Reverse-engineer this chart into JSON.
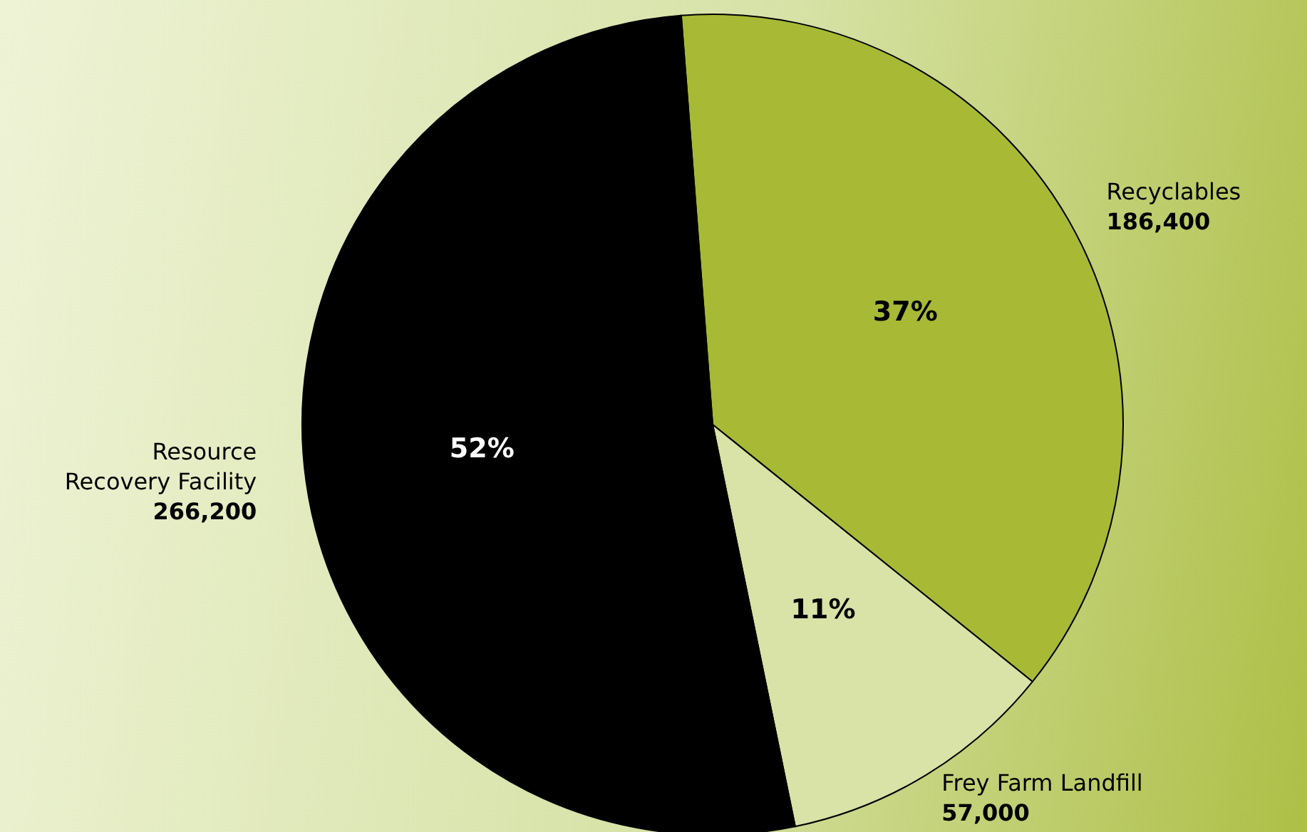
{
  "chart_data": {
    "type": "pie",
    "categories": [
      "Recyclables",
      "Frey Farm Landfill",
      "Resource Recovery Facility"
    ],
    "values": [
      37,
      11,
      52
    ],
    "colors": [
      "#a8b935",
      "#d9e2a7",
      "#000000"
    ],
    "value_labels": [
      "37%",
      "11%",
      "52%"
    ],
    "annotations": [
      {
        "text": "186,400",
        "x": "Recyclables"
      },
      {
        "text": "57,000",
        "x": "Frey Farm Landfill"
      },
      {
        "text": "266,200",
        "x": "Resource Recovery Facility"
      }
    ],
    "legend": false
  }
}
